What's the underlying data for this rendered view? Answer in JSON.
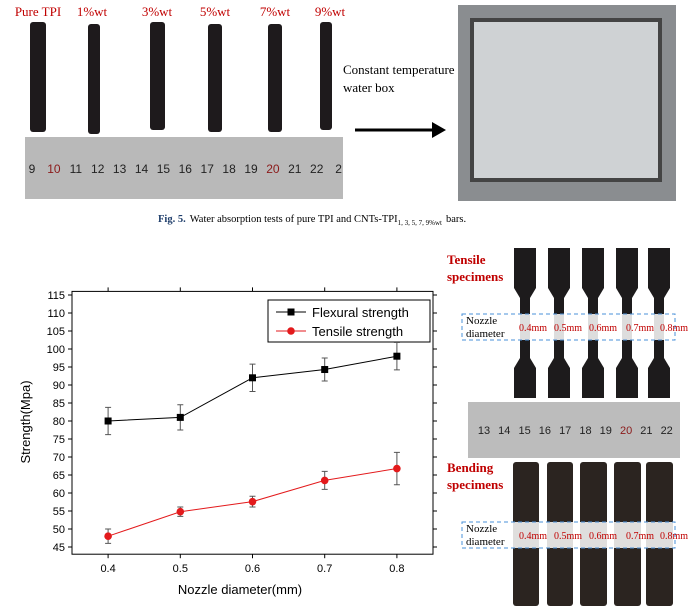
{
  "top_figure": {
    "sample_labels": [
      "Pure TPI",
      "1%wt",
      "3%wt",
      "5%wt",
      "7%wt",
      "9%wt"
    ],
    "ruler_labels": [
      "9",
      "10",
      "11",
      "12",
      "13",
      "14",
      "15",
      "16",
      "17",
      "18",
      "19",
      "20",
      "21",
      "22",
      "2"
    ],
    "box_label": [
      "Constant temperature",
      "water box"
    ]
  },
  "caption": {
    "label": "Fig. 5.",
    "text": "Water absorption tests of pure TPI and CNTs-TPI",
    "subscript": "1, 3, 5, 7, 9%wt",
    "end": "bars."
  },
  "chart_data": {
    "type": "line",
    "xlabel": "Nozzle diameter(mm)",
    "ylabel": "Strength(Mpa)",
    "x": [
      0.4,
      0.5,
      0.6,
      0.7,
      0.8
    ],
    "series": [
      {
        "name": "Flexural strength",
        "color": "#000000",
        "marker": "square",
        "values": [
          80,
          81,
          92,
          94.3,
          98
        ],
        "errors": [
          3.8,
          3.5,
          3.8,
          3.2,
          3.8
        ]
      },
      {
        "name": "Tensile strength",
        "color": "#e31a1c",
        "marker": "circle",
        "values": [
          48,
          54.8,
          57.6,
          63.5,
          66.8
        ],
        "errors": [
          2,
          1.3,
          1.5,
          2.5,
          4.5
        ]
      }
    ],
    "xlim": [
      0.35,
      0.85
    ],
    "ylim": [
      43,
      116
    ],
    "xticks": [
      0.4,
      0.5,
      0.6,
      0.7,
      0.8
    ],
    "yticks": [
      45,
      50,
      55,
      60,
      65,
      70,
      75,
      80,
      85,
      90,
      95,
      100,
      105,
      110,
      115
    ],
    "legend": "upper right"
  },
  "right_figure": {
    "tensile_title": [
      "Tensile",
      "specimens"
    ],
    "bending_title": [
      "Bending",
      "specimens"
    ],
    "nozzle_label": [
      "Nozzle",
      "diameter"
    ],
    "sizes": [
      "0.4mm",
      "0.5mm",
      "0.6mm",
      "0.7mm",
      "0.8mm"
    ],
    "ruler_labels": [
      "13",
      "14",
      "15",
      "16",
      "17",
      "18",
      "19",
      "20",
      "21",
      "22"
    ]
  }
}
